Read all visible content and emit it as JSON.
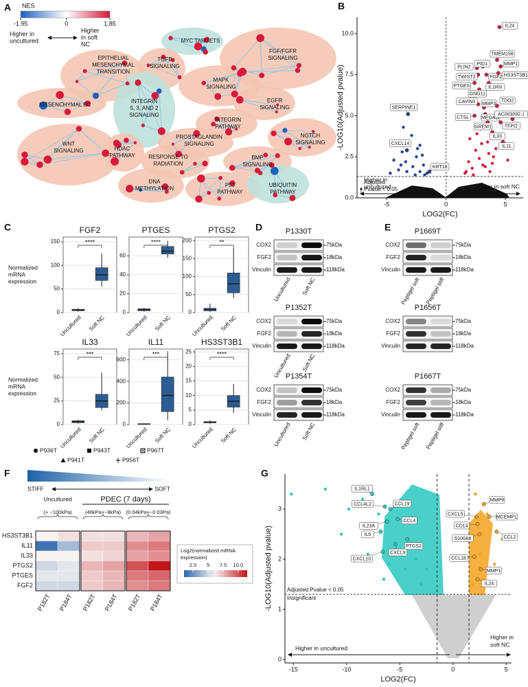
{
  "panel_labels": [
    "A",
    "B",
    "C",
    "D",
    "E",
    "F",
    "G"
  ],
  "network": {
    "legend_title": "NES",
    "scale_ticks": [
      -1.95,
      0,
      1.85
    ],
    "colors": [
      "#1f5fbf",
      "#ffffff",
      "#d7193a"
    ],
    "direction_left": [
      "Higher in",
      "uncultured"
    ],
    "direction_right": [
      "Higher",
      "in soft",
      "NC"
    ],
    "blob_colors": {
      "up": "#f4c7b4",
      "down": "#bfe1dc"
    },
    "clusters": [
      {
        "label": [
          "EPITHELIAL",
          "MESENCHYMAL",
          "TRANSITION"
        ],
        "kind": "up"
      },
      {
        "label": [
          "MYC TARGETS"
        ],
        "kind": "down"
      },
      {
        "label": [
          "TGFB",
          "SIGNALING"
        ],
        "kind": "up"
      },
      {
        "label": [
          "FGF/FGFR",
          "SIGNALING"
        ],
        "kind": "up"
      },
      {
        "label": [
          "MAPK",
          "SIGNALING"
        ],
        "kind": "up"
      },
      {
        "label": [
          "MESENCHYMAL BC"
        ],
        "kind": "up"
      },
      {
        "label": [
          "INTEGRIN",
          "5, 3, AND 2",
          "SIGNALING"
        ],
        "kind": "down"
      },
      {
        "label": [
          "EGFR",
          "SIGNALING"
        ],
        "kind": "up"
      },
      {
        "label": [
          "INTEGRIN",
          "PATHWAY"
        ],
        "kind": "up"
      },
      {
        "label": [
          "PROSTAGLANDIN",
          "SIGNALING"
        ],
        "kind": "up"
      },
      {
        "label": [
          "NOTCH",
          "SIGNALING"
        ],
        "kind": "up"
      },
      {
        "label": [
          "WNT",
          "SIGNALING"
        ],
        "kind": "up"
      },
      {
        "label": [
          "HDAC",
          "PATHWAY"
        ],
        "kind": "up"
      },
      {
        "label": [
          "RESPONSE TO",
          "RADIATION"
        ],
        "kind": "up"
      },
      {
        "label": [
          "BMP",
          "SIGNALING"
        ],
        "kind": "up"
      },
      {
        "label": [
          "DNA",
          "METHYLATION"
        ],
        "kind": "up"
      },
      {
        "label": [
          "P53",
          "PATHWAY"
        ],
        "kind": "up"
      },
      {
        "label": [
          "UBIQUITIN",
          "PATHWAY"
        ],
        "kind": "down"
      }
    ]
  },
  "volcano_b": {
    "type": "scatter",
    "xlabel": "LOG2(FC)",
    "ylabel": "-LOG10(Adjusted pvalue)",
    "xlim": [
      -7.5,
      6.5
    ],
    "xticks": [
      -5,
      0,
      5
    ],
    "ylim": [
      0,
      11
    ],
    "yticks": [
      {
        "value": 0,
        "label": "0.0"
      },
      2.5,
      {
        "value": 5,
        "label": "5.0"
      },
      7.5,
      {
        "value": 10,
        "label": "10.0"
      }
    ],
    "threshold": 1.3,
    "threshold_label": [
      "Adjusted",
      "Pvalue < 0.05"
    ],
    "left_label": [
      "Higher in",
      "uncultured"
    ],
    "right_label": "Higher in soft NC",
    "up_color": "#d21f3c",
    "down_color": "#24468f",
    "up_points": {
      "x": [
        1.6,
        1.9,
        2.2,
        2.5,
        2.8,
        3.0,
        3.3,
        3.6,
        3.9,
        4.2,
        1.7,
        2.0,
        2.6,
        3.1,
        3.5,
        4.0,
        2.3,
        2.9,
        3.7,
        5.2
      ],
      "y": [
        1.5,
        2.2,
        1.8,
        2.9,
        2.4,
        3.3,
        1.9,
        2.7,
        2.1,
        3.0,
        1.6,
        3.6,
        3.9,
        2.0,
        3.4,
        2.5,
        1.4,
        4.2,
        1.6,
        2.3
      ]
    },
    "down_points": {
      "x": [
        -1.6,
        -1.9,
        -2.2,
        -2.5,
        -2.8,
        -3.1,
        -3.4,
        -3.7,
        -4.0,
        -4.4,
        -1.8,
        -2.4,
        -2.9,
        -3.3,
        -3.8,
        -2.0,
        -2.6,
        -3.6,
        -4.7,
        -2.2
      ],
      "y": [
        1.5,
        2.0,
        1.6,
        2.5,
        1.9,
        3.4,
        2.2,
        2.8,
        1.7,
        2.3,
        1.4,
        3.0,
        3.8,
        1.6,
        2.0,
        2.6,
        1.4,
        4.3,
        1.5,
        3.2
      ]
    },
    "genes": [
      {
        "name": "IL24",
        "x": 4.5,
        "y": 10.4
      },
      {
        "name": "TMEM158",
        "x": 4.3,
        "y": 8.4
      },
      {
        "name": "MMP1",
        "x": 4.6,
        "y": 8.0
      },
      {
        "name": "PLIN2",
        "x": 2.6,
        "y": 7.9
      },
      {
        "name": "PID1",
        "x": 3.1,
        "y": 8.0
      },
      {
        "name": "TWIST2",
        "x": 2.7,
        "y": 7.5
      },
      {
        "name": "FGF2",
        "x": 3.4,
        "y": 7.5
      },
      {
        "name": "HS3ST3B1",
        "x": 4.4,
        "y": 7.6
      },
      {
        "name": "PTGES",
        "x": 2.4,
        "y": 7.0
      },
      {
        "name": "IL1RN",
        "x": 3.6,
        "y": 7.0
      },
      {
        "name": "GNG11",
        "x": 2.8,
        "y": 6.6
      },
      {
        "name": "CAVIN3",
        "x": 2.7,
        "y": 5.7
      },
      {
        "name": "MMP3",
        "x": 3.2,
        "y": 5.5
      },
      {
        "name": "TDO2",
        "x": 4.3,
        "y": 5.6
      },
      {
        "name": "CTSL",
        "x": 2.4,
        "y": 5.0
      },
      {
        "name": "MEDAG",
        "x": 3.3,
        "y": 5.1
      },
      {
        "name": "AC003092.1",
        "x": 5.6,
        "y": 4.8
      },
      {
        "name": "GREM1",
        "x": 3.5,
        "y": 4.6
      },
      {
        "name": "TFPI2",
        "x": 4.6,
        "y": 4.6
      },
      {
        "name": "IL33",
        "x": 3.9,
        "y": 4.0
      },
      {
        "name": "IL11",
        "x": 4.8,
        "y": 3.4
      },
      {
        "name": "SERPINE1",
        "x": -3.2,
        "y": 5.1
      },
      {
        "name": "CXCL14",
        "x": -3.3,
        "y": 2.9
      },
      {
        "name": "KRT18",
        "x": -1.4,
        "y": 1.6
      }
    ]
  },
  "boxplots": {
    "type": "box",
    "ylabel": [
      "Normalized",
      "mRNA",
      "expression"
    ],
    "categories": [
      "Uncultured",
      "Soft NC"
    ],
    "box_color": "#2d5c92",
    "legend": [
      "P936T",
      "P943T",
      "P967T",
      "P941T",
      "P956T"
    ],
    "plots": [
      {
        "title": "FGF2",
        "ylim": [
          0,
          160
        ],
        "yticks": [
          0,
          50,
          100,
          150
        ],
        "significance": "****",
        "boxes": [
          {
            "min": 2,
            "q1": 4,
            "median": 5,
            "q3": 7,
            "max": 10
          },
          {
            "min": 55,
            "q1": 68,
            "median": 80,
            "q3": 95,
            "max": 125
          }
        ]
      },
      {
        "title": "PTGES",
        "ylim": [
          0,
          80
        ],
        "yticks": [
          0,
          20,
          40,
          60
        ],
        "significance": "****",
        "boxes": [
          {
            "min": 1,
            "q1": 2,
            "median": 3,
            "q3": 4,
            "max": 5
          },
          {
            "min": 58,
            "q1": 62,
            "median": 65,
            "q3": 70,
            "max": 76
          }
        ]
      },
      {
        "title": "PTGS2",
        "ylim": [
          0,
          210
        ],
        "yticks": [
          0,
          50,
          100,
          150,
          200
        ],
        "significance": "**",
        "boxes": [
          {
            "min": 2,
            "q1": 5,
            "median": 8,
            "q3": 12,
            "max": 25
          },
          {
            "min": 40,
            "q1": 55,
            "median": 80,
            "q3": 110,
            "max": 180
          }
        ]
      },
      {
        "title": "IL33",
        "ylim": [
          0,
          80
        ],
        "yticks": [
          0,
          25,
          50,
          75
        ],
        "significance": "***",
        "boxes": [
          {
            "min": 1,
            "q1": 2,
            "median": 3,
            "q3": 4,
            "max": 5
          },
          {
            "min": 15,
            "q1": 18,
            "median": 25,
            "q3": 32,
            "max": 55
          }
        ]
      },
      {
        "title": "IL11",
        "ylim": [
          0,
          700
        ],
        "yticks": [
          0,
          200,
          400,
          600
        ],
        "significance": "***",
        "boxes": [
          {
            "min": 2,
            "q1": 4,
            "median": 6,
            "q3": 8,
            "max": 10
          },
          {
            "min": 40,
            "q1": 120,
            "median": 270,
            "q3": 440,
            "max": 680
          }
        ]
      },
      {
        "title": "HS3ST3B1",
        "ylim": [
          0,
          26
        ],
        "yticks": [
          0,
          5,
          10,
          15,
          20,
          25
        ],
        "significance": "****",
        "boxes": [
          {
            "min": 0.3,
            "q1": 0.6,
            "median": 0.8,
            "q3": 1.0,
            "max": 1.5
          },
          {
            "min": 4,
            "q1": 6,
            "median": 8,
            "q3": 10,
            "max": 14
          }
        ]
      }
    ]
  },
  "blots_d": {
    "blots": [
      "P1330T",
      "P1352T",
      "P1354T"
    ],
    "rows": [
      "COX2",
      "FGF2",
      "Vinculin"
    ],
    "sizes": [
      "75kDa",
      "18kDa",
      "118kDa"
    ],
    "lanes": [
      "Uncultured",
      "Soft NC"
    ]
  },
  "blots_e": {
    "blots": [
      "P1669T",
      "P1656T",
      "P1667T"
    ],
    "rows": [
      "COX2",
      "FGF2",
      "Vinculin"
    ],
    "sizes": [
      "75kDa",
      "18kDa",
      "118kDa"
    ],
    "lanes": [
      "Peptigel soft",
      "Peptigel stiff"
    ]
  },
  "heatmap": {
    "type": "heatmap",
    "stiff_label": "STIFF",
    "soft_label": "SOFT",
    "group_title": "PDEC (7 days)",
    "groups": [
      "Uncultured"
    ],
    "group_notes": [
      "(+ ~100kPa)",
      "(46kPa+~8kPa)",
      "(0.04kPa+~0.03Pa)"
    ],
    "rows": [
      "HS3ST3B1",
      "IL11",
      "IL33",
      "PTGS2",
      "PTGES",
      "FGF2"
    ],
    "columns": [
      "P182T",
      "P184T",
      "P182T",
      "P184T",
      "P182T",
      "P184T"
    ],
    "values": [
      [
        6,
        6.5,
        6.5,
        6.5,
        7.5,
        8
      ],
      [
        1.5,
        4,
        7,
        7,
        8.5,
        9
      ],
      [
        6,
        6,
        6.5,
        6.8,
        8,
        8.5
      ],
      [
        5,
        5.5,
        7.5,
        8,
        10,
        11.5
      ],
      [
        5.5,
        5.5,
        7,
        7.5,
        9,
        9.5
      ],
      [
        5,
        5,
        7,
        7.5,
        8.5,
        9
      ]
    ],
    "legend_title": [
      "Log2(normalized mRNA",
      "expression)"
    ],
    "clim": [
      1,
      11.5
    ],
    "cticks": [
      2.5,
      5,
      7.5,
      {
        "value": 10,
        "label": "10.0"
      }
    ],
    "color_stops": [
      {
        "value": 1,
        "color": "#2b65ad"
      },
      {
        "value": 6,
        "color": "#f7f4f2"
      },
      {
        "value": 11.5,
        "color": "#c3151c"
      }
    ]
  },
  "volcano_g": {
    "type": "scatter",
    "xlabel": "LOG2(FC)",
    "ylabel": "-LOG10(Adjusted pvalue)",
    "xlim": [
      -15.8,
      5.5
    ],
    "xticks": [
      -15,
      -10,
      -5,
      0,
      5
    ],
    "ylim": [
      -0.07,
      3.7
    ],
    "yticks": [
      0,
      1,
      2,
      3
    ],
    "threshold": 1.3,
    "fc_threshold": [
      -1.5,
      1.5
    ],
    "threshold_label": "Adjusted Pvalue < 0.05",
    "insignificant_label": "Insignificant",
    "left_label": "Higher in uncultured",
    "right_label": [
      "Higher in",
      "soft NC"
    ],
    "down_color": "#2cc8bf",
    "up_color": "#f4a21e",
    "down_points": {
      "x": [
        -8.5,
        -9.8,
        -10.5,
        -12,
        -15.2,
        -7,
        -6.5,
        -4.5,
        -3.5,
        -3,
        -5.5,
        -8,
        -4,
        -6,
        -2.5
      ],
      "y": [
        3.2,
        3.0,
        2.5,
        3.4,
        3.3,
        2.9,
        1.6,
        1.8,
        2.0,
        1.5,
        2.2,
        2.1,
        3.1,
        1.9,
        1.8
      ]
    },
    "up_points": {
      "x": [
        1.8,
        2.5,
        3.2,
        4.6,
        3.9,
        2.1,
        2.8,
        1.6
      ],
      "y": [
        1.5,
        2.1,
        2.9,
        2.4,
        1.9,
        3.3,
        1.6,
        2.7
      ]
    },
    "genes": [
      {
        "name": "IL1RL1",
        "x": -7.6,
        "y": 3.3
      },
      {
        "name": "CCL4L2",
        "x": -6.4,
        "y": 3.05
      },
      {
        "name": "CCL19",
        "x": -5.9,
        "y": 3.0
      },
      {
        "name": "IL23A",
        "x": -6.2,
        "y": 2.75
      },
      {
        "name": "CCL4",
        "x": -5.2,
        "y": 2.8
      },
      {
        "name": "PTGS2",
        "x": -4.3,
        "y": 2.4
      },
      {
        "name": "IL6",
        "x": -6.8,
        "y": 2.55
      },
      {
        "name": "CXCL9",
        "x": -5.4,
        "y": 2.3
      },
      {
        "name": "CXCL10",
        "x": -6.6,
        "y": 2.15
      },
      {
        "name": "MMP9",
        "x": 2.9,
        "y": 3.1
      },
      {
        "name": "CXCL5",
        "x": 2.2,
        "y": 2.85
      },
      {
        "name": "MCEMP1",
        "x": 3.4,
        "y": 2.85
      },
      {
        "name": "CD14",
        "x": 2.3,
        "y": 2.7
      },
      {
        "name": "S100A8",
        "x": 2.5,
        "y": 2.5
      },
      {
        "name": "CCL2",
        "x": 4.1,
        "y": 2.55
      },
      {
        "name": "CCL18",
        "x": 2.0,
        "y": 2.05
      },
      {
        "name": "MMP1",
        "x": 2.6,
        "y": 1.8
      },
      {
        "name": "IL24",
        "x": 2.3,
        "y": 1.6
      }
    ]
  }
}
